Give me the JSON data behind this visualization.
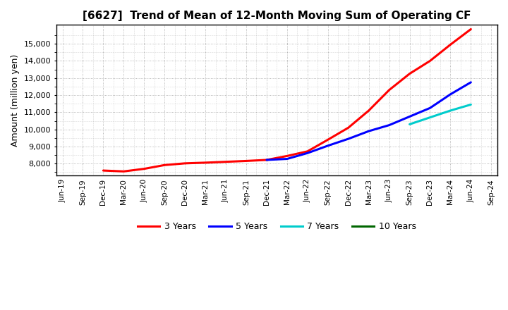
{
  "title": "[6627]  Trend of Mean of 12-Month Moving Sum of Operating CF",
  "ylabel": "Amount (million yen)",
  "background_color": "#ffffff",
  "plot_bg_color": "#ffffff",
  "grid_color": "#999999",
  "series": {
    "3 Years": {
      "color": "#ff0000",
      "x": [
        "Dec-19",
        "Mar-20",
        "Jun-20",
        "Sep-20",
        "Dec-20",
        "Mar-21",
        "Jun-21",
        "Sep-21",
        "Dec-21",
        "Mar-22",
        "Jun-22",
        "Sep-22",
        "Dec-22",
        "Mar-23",
        "Jun-23",
        "Sep-23",
        "Dec-23",
        "Mar-24",
        "Jun-24"
      ],
      "y": [
        7600,
        7550,
        7700,
        7920,
        8020,
        8060,
        8110,
        8160,
        8220,
        8450,
        8720,
        9400,
        10100,
        11100,
        12300,
        13250,
        14000,
        14950,
        15850
      ]
    },
    "5 Years": {
      "color": "#0000ff",
      "x": [
        "Dec-21",
        "Mar-22",
        "Jun-22",
        "Sep-22",
        "Dec-22",
        "Mar-23",
        "Jun-23",
        "Sep-23",
        "Dec-23",
        "Mar-24",
        "Jun-24"
      ],
      "y": [
        8220,
        8280,
        8620,
        9050,
        9450,
        9900,
        10250,
        10750,
        11250,
        12050,
        12750
      ]
    },
    "7 Years": {
      "color": "#00cccc",
      "x": [
        "Sep-23",
        "Dec-23",
        "Mar-24",
        "Jun-24"
      ],
      "y": [
        10300,
        10700,
        11100,
        11450
      ]
    },
    "10 Years": {
      "color": "#006600",
      "x": [],
      "y": []
    }
  },
  "xtick_labels": [
    "Jun-19",
    "Sep-19",
    "Dec-19",
    "Mar-20",
    "Jun-20",
    "Sep-20",
    "Dec-20",
    "Mar-21",
    "Jun-21",
    "Sep-21",
    "Dec-21",
    "Mar-22",
    "Jun-22",
    "Sep-22",
    "Dec-22",
    "Mar-23",
    "Jun-23",
    "Sep-23",
    "Dec-23",
    "Mar-24",
    "Jun-24",
    "Sep-24"
  ],
  "ylim": [
    7300,
    16100
  ],
  "yticks": [
    8000,
    9000,
    10000,
    11000,
    12000,
    13000,
    14000,
    15000
  ],
  "minor_yticks": [
    7500,
    8500,
    9500,
    10500,
    11500,
    12500,
    13500,
    14500,
    15500
  ]
}
